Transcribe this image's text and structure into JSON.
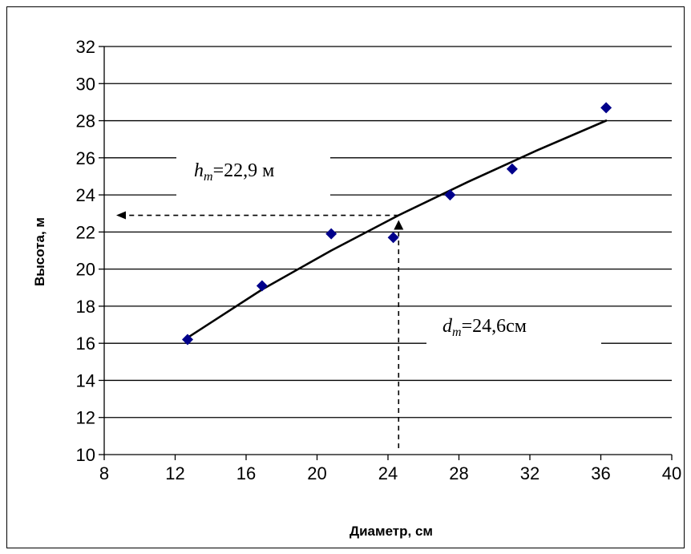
{
  "chart_data": {
    "type": "scatter",
    "xlabel": "Диаметр, см",
    "ylabel": "Высота, м",
    "xlim": [
      8,
      40
    ],
    "ylim": [
      10,
      32
    ],
    "xticks": [
      8,
      12,
      16,
      20,
      24,
      28,
      32,
      36,
      40
    ],
    "yticks": [
      10,
      12,
      14,
      16,
      18,
      20,
      22,
      24,
      26,
      28,
      30,
      32
    ],
    "grid": "horizontal",
    "points": [
      {
        "x": 12.7,
        "y": 16.2
      },
      {
        "x": 16.9,
        "y": 19.1
      },
      {
        "x": 20.8,
        "y": 21.9
      },
      {
        "x": 24.3,
        "y": 21.7
      },
      {
        "x": 27.5,
        "y": 24.0
      },
      {
        "x": 31.0,
        "y": 25.4
      },
      {
        "x": 36.3,
        "y": 28.7
      }
    ],
    "trendline": [
      {
        "x": 12.7,
        "y": 16.3
      },
      {
        "x": 16.9,
        "y": 18.9
      },
      {
        "x": 20.8,
        "y": 21.0
      },
      {
        "x": 24.6,
        "y": 22.9
      },
      {
        "x": 28.5,
        "y": 24.7
      },
      {
        "x": 32.4,
        "y": 26.4
      },
      {
        "x": 36.3,
        "y": 28.0
      }
    ],
    "point_color": "#00008B",
    "marker": "diamond",
    "annotations": {
      "h": {
        "prefix": "h",
        "sub": "m",
        "text": "=22,9 м",
        "value": 22.9
      },
      "d": {
        "prefix": "d",
        "sub": "m",
        "text": "=24,6см",
        "value": 24.6
      }
    }
  }
}
